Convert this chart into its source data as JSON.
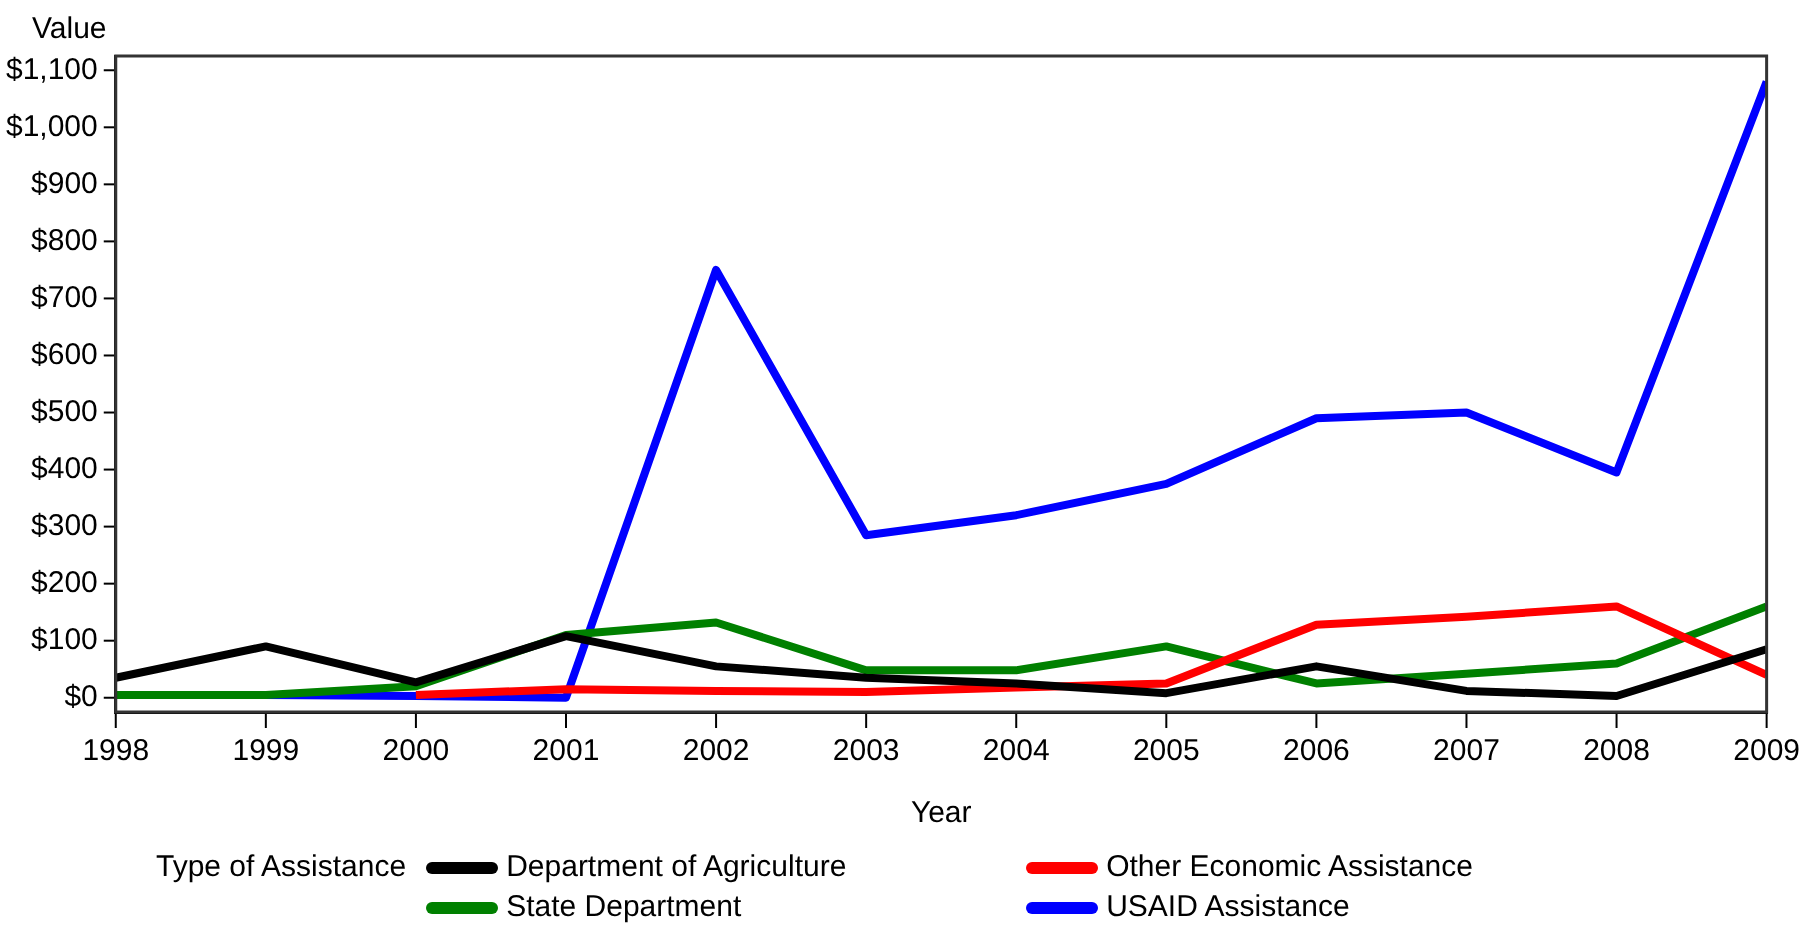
{
  "chart_data": {
    "type": "line",
    "xlabel": "Year",
    "ylabel": "Value",
    "legend_title": "Type of Assistance",
    "legend": "bottom",
    "grid": false,
    "marker": "none",
    "line_style": "solid",
    "x": [
      1998,
      1999,
      2000,
      2001,
      2002,
      2003,
      2004,
      2005,
      2006,
      2007,
      2008,
      2009
    ],
    "xlim": [
      1998,
      2009
    ],
    "xticks": [
      1998,
      1999,
      2000,
      2001,
      2002,
      2003,
      2004,
      2005,
      2006,
      2007,
      2008,
      2009
    ],
    "ylim": [
      -25,
      1125
    ],
    "yticks": [
      {
        "value": 0,
        "label": "$0"
      },
      {
        "value": 100,
        "label": "$100"
      },
      {
        "value": 200,
        "label": "$200"
      },
      {
        "value": 300,
        "label": "$300"
      },
      {
        "value": 400,
        "label": "$400"
      },
      {
        "value": 500,
        "label": "$500"
      },
      {
        "value": 600,
        "label": "$600"
      },
      {
        "value": 700,
        "label": "$700"
      },
      {
        "value": 800,
        "label": "$800"
      },
      {
        "value": 900,
        "label": "$900"
      },
      {
        "value": 1000,
        "label": "$1,000"
      },
      {
        "value": 1100,
        "label": "$1,100"
      }
    ],
    "series": [
      {
        "name": "Department of Agriculture",
        "color": "#000000",
        "values": [
          35,
          90,
          27,
          108,
          55,
          35,
          25,
          8,
          55,
          12,
          3,
          85
        ]
      },
      {
        "name": "Other Economic Assistance",
        "color": "#ff0000",
        "values": [
          null,
          null,
          5,
          15,
          12,
          10,
          18,
          25,
          128,
          142,
          160,
          40
        ]
      },
      {
        "name": "State Department",
        "color": "#008000",
        "values": [
          5,
          5,
          20,
          110,
          132,
          48,
          48,
          90,
          25,
          42,
          60,
          160
        ]
      },
      {
        "name": "USAID Assistance",
        "color": "#0000ff",
        "values": [
          null,
          5,
          3,
          0,
          750,
          285,
          320,
          375,
          490,
          500,
          395,
          1080
        ]
      }
    ]
  }
}
